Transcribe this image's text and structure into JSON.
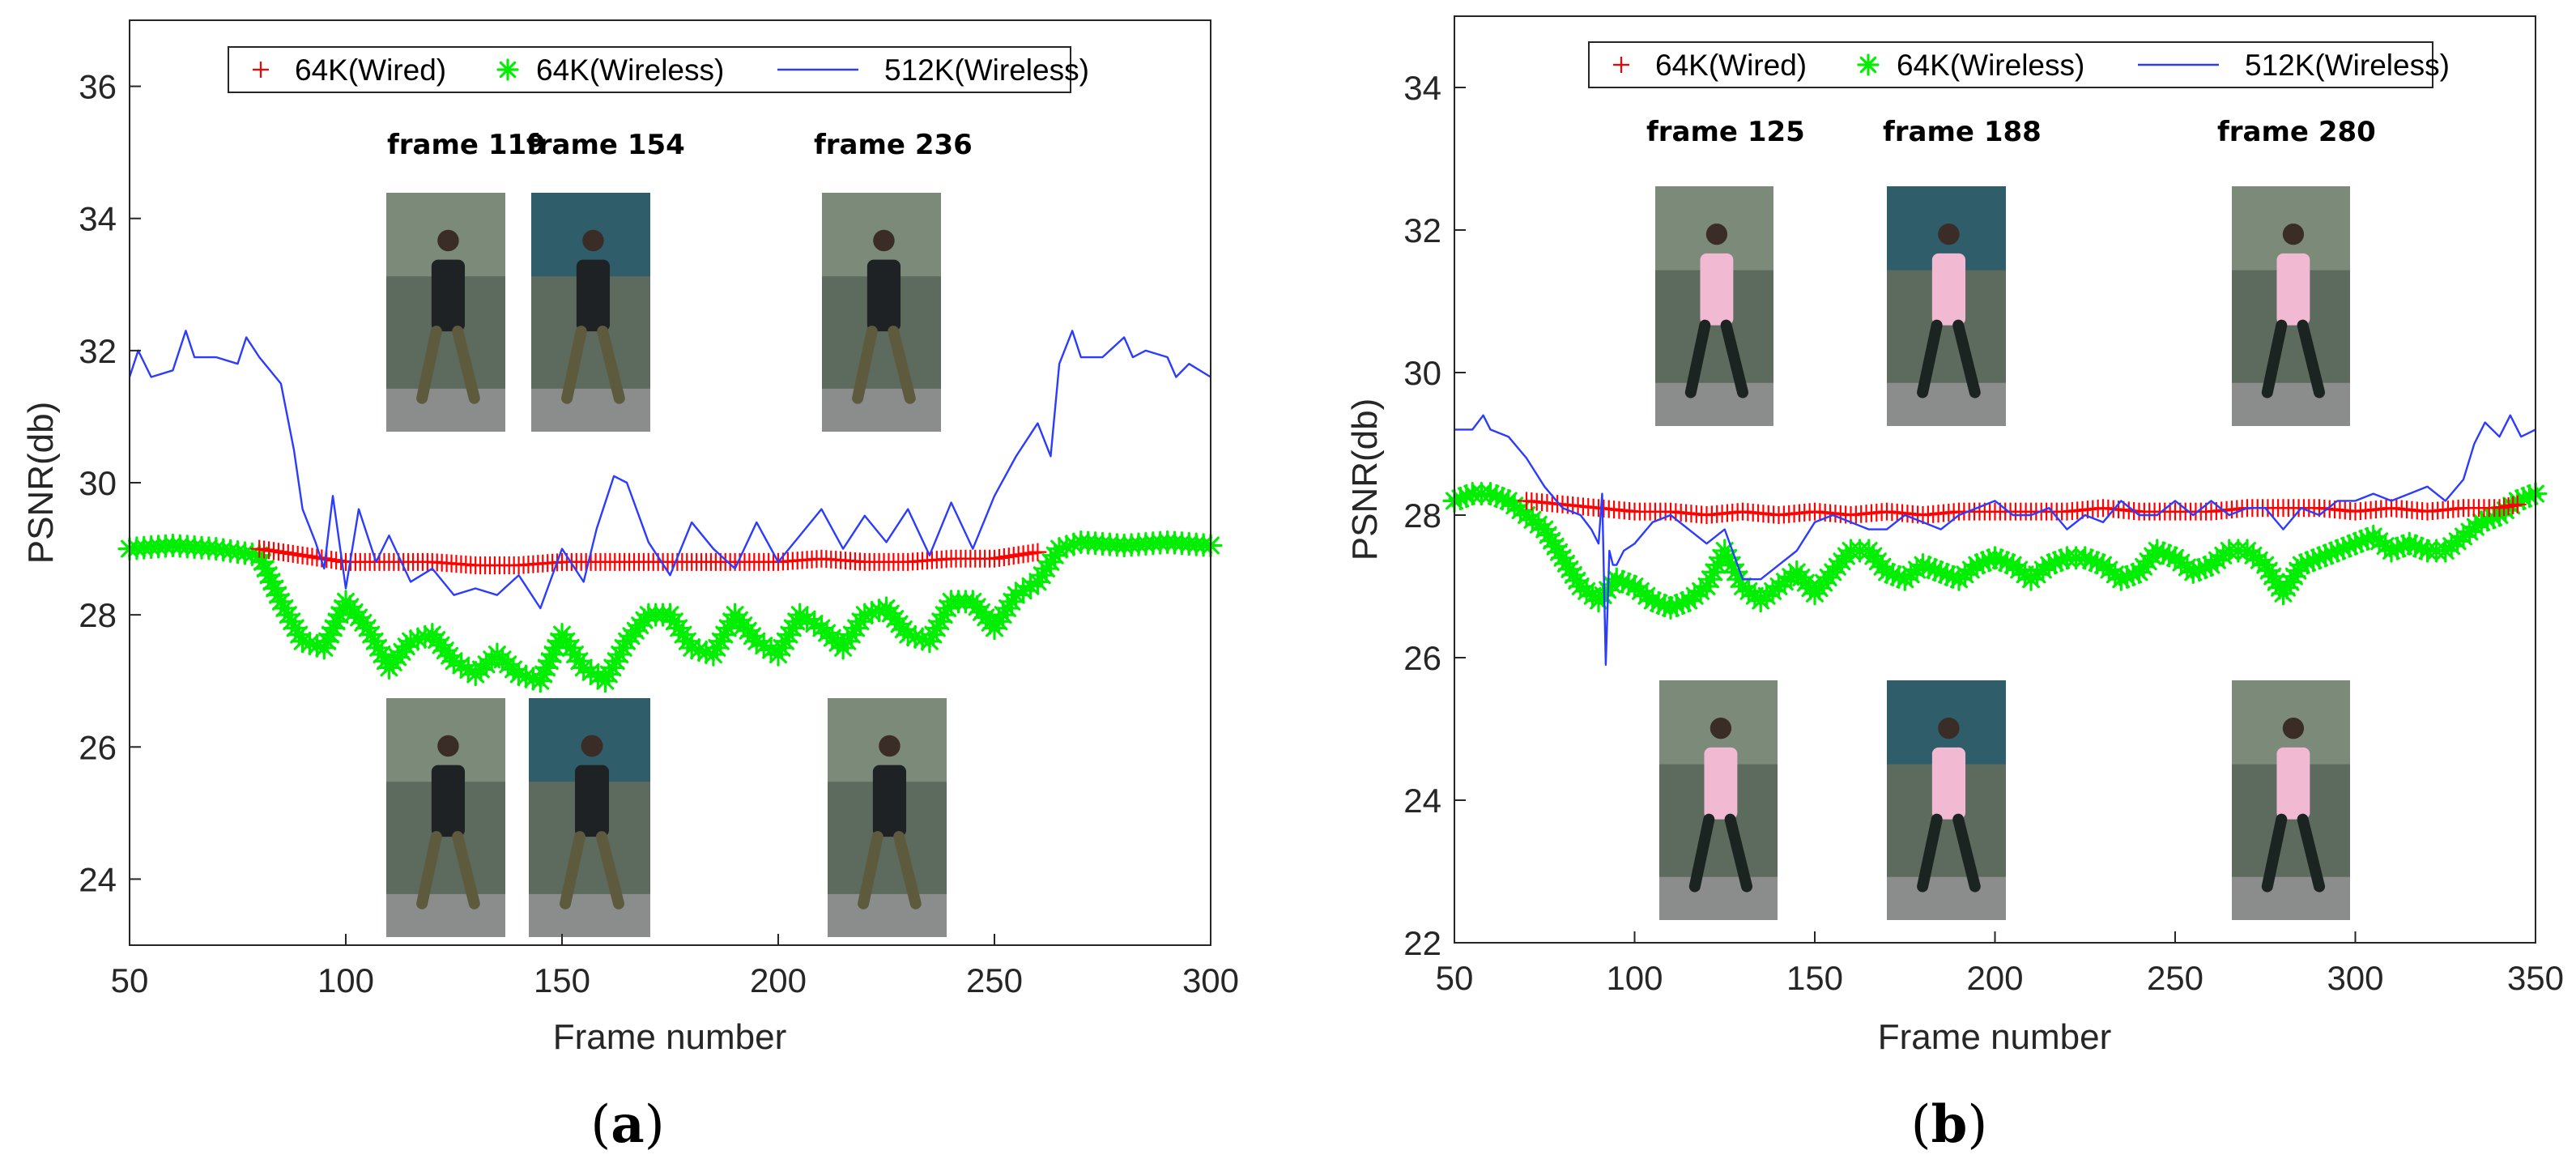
{
  "chart_data": [
    {
      "type": "line",
      "panel_label": "a",
      "xlabel": "Frame number",
      "ylabel": "PSNR(db)",
      "xlim": [
        50,
        300
      ],
      "ylim": [
        23,
        37
      ],
      "xticks": [
        50,
        100,
        150,
        200,
        250,
        300
      ],
      "yticks": [
        24,
        26,
        28,
        30,
        32,
        34,
        36
      ],
      "grid": false,
      "legend_position": "top-center",
      "frame_labels": [
        "frame 119",
        "frame 154",
        "frame 236"
      ],
      "series": [
        {
          "name": "64K(Wired)",
          "color": "#ff0000",
          "marker": "plus",
          "x": [
            80,
            90,
            100,
            110,
            120,
            130,
            140,
            150,
            160,
            170,
            180,
            190,
            200,
            210,
            220,
            230,
            240,
            250,
            260
          ],
          "y": [
            29.0,
            28.9,
            28.8,
            28.8,
            28.8,
            28.75,
            28.75,
            28.8,
            28.8,
            28.8,
            28.8,
            28.8,
            28.8,
            28.85,
            28.8,
            28.8,
            28.85,
            28.85,
            28.95
          ]
        },
        {
          "name": "64K(Wireless)",
          "color": "#00ee00",
          "marker": "star",
          "x": [
            50,
            60,
            70,
            80,
            85,
            90,
            95,
            100,
            105,
            110,
            115,
            120,
            125,
            130,
            135,
            140,
            145,
            150,
            155,
            160,
            165,
            170,
            175,
            180,
            185,
            190,
            195,
            200,
            205,
            210,
            215,
            220,
            225,
            230,
            235,
            240,
            245,
            250,
            255,
            260,
            265,
            270,
            280,
            290,
            300
          ],
          "y": [
            29.0,
            29.05,
            29.0,
            28.9,
            28.2,
            27.6,
            27.5,
            28.2,
            27.8,
            27.2,
            27.6,
            27.7,
            27.3,
            27.1,
            27.4,
            27.1,
            27.0,
            27.7,
            27.2,
            27.0,
            27.6,
            28.0,
            28.0,
            27.5,
            27.4,
            28.0,
            27.6,
            27.4,
            28.0,
            27.8,
            27.5,
            28.0,
            28.1,
            27.7,
            27.6,
            28.2,
            28.2,
            27.8,
            28.3,
            28.5,
            29.0,
            29.1,
            29.05,
            29.1,
            29.05
          ]
        },
        {
          "name": "512K(Wireless)",
          "color": "#2b3cff",
          "marker": "none",
          "x": [
            50,
            52,
            55,
            60,
            63,
            65,
            70,
            75,
            77,
            80,
            85,
            88,
            90,
            93,
            95,
            97,
            100,
            103,
            107,
            110,
            115,
            120,
            125,
            130,
            135,
            140,
            145,
            150,
            155,
            158,
            162,
            165,
            170,
            175,
            180,
            185,
            190,
            195,
            200,
            205,
            210,
            215,
            220,
            225,
            230,
            235,
            240,
            245,
            250,
            255,
            260,
            263,
            265,
            268,
            270,
            275,
            280,
            282,
            285,
            290,
            292,
            295,
            300
          ],
          "y": [
            31.6,
            32.0,
            31.6,
            31.7,
            32.3,
            31.9,
            31.9,
            31.8,
            32.2,
            31.9,
            31.5,
            30.5,
            29.6,
            29.1,
            28.7,
            29.8,
            28.4,
            29.6,
            28.8,
            29.2,
            28.5,
            28.7,
            28.3,
            28.4,
            28.3,
            28.6,
            28.1,
            29.0,
            28.5,
            29.3,
            30.1,
            30.0,
            29.1,
            28.6,
            29.4,
            29.0,
            28.7,
            29.4,
            28.8,
            29.2,
            29.6,
            29.0,
            29.5,
            29.1,
            29.6,
            28.9,
            29.7,
            29.0,
            29.8,
            30.4,
            30.9,
            30.4,
            31.8,
            32.3,
            31.9,
            31.9,
            32.2,
            31.9,
            32.0,
            31.9,
            31.6,
            31.8,
            31.6
          ]
        }
      ]
    },
    {
      "type": "line",
      "panel_label": "b",
      "xlabel": "Frame number",
      "ylabel": "PSNR(db)",
      "xlim": [
        50,
        350
      ],
      "ylim": [
        22,
        35
      ],
      "xticks": [
        50,
        100,
        150,
        200,
        250,
        300,
        350
      ],
      "yticks": [
        22,
        24,
        26,
        28,
        30,
        32,
        34
      ],
      "grid": false,
      "legend_position": "top-center",
      "frame_labels": [
        "frame 125",
        "frame 188",
        "frame 280"
      ],
      "series": [
        {
          "name": "64K(Wired)",
          "color": "#ff0000",
          "marker": "plus",
          "x": [
            70,
            80,
            90,
            100,
            110,
            120,
            130,
            140,
            150,
            160,
            170,
            180,
            190,
            200,
            210,
            220,
            230,
            240,
            250,
            260,
            270,
            280,
            290,
            300,
            310,
            320,
            330,
            340,
            345
          ],
          "y": [
            28.2,
            28.15,
            28.1,
            28.05,
            28.05,
            28.0,
            28.05,
            28.0,
            28.05,
            28.0,
            28.05,
            28.0,
            28.05,
            28.05,
            28.05,
            28.05,
            28.1,
            28.05,
            28.05,
            28.05,
            28.1,
            28.1,
            28.1,
            28.05,
            28.1,
            28.05,
            28.1,
            28.1,
            28.15
          ]
        },
        {
          "name": "64K(Wireless)",
          "color": "#00ee00",
          "marker": "star",
          "x": [
            50,
            55,
            60,
            65,
            70,
            75,
            80,
            85,
            90,
            95,
            100,
            105,
            110,
            115,
            120,
            125,
            130,
            135,
            140,
            145,
            150,
            155,
            160,
            165,
            170,
            175,
            180,
            185,
            190,
            195,
            200,
            205,
            210,
            215,
            220,
            225,
            230,
            235,
            240,
            245,
            250,
            255,
            260,
            265,
            270,
            275,
            280,
            285,
            290,
            295,
            300,
            305,
            310,
            315,
            320,
            325,
            330,
            335,
            340,
            345,
            350
          ],
          "y": [
            28.2,
            28.3,
            28.3,
            28.2,
            28.0,
            27.8,
            27.4,
            27.0,
            26.8,
            27.1,
            27.0,
            26.8,
            26.7,
            26.8,
            27.0,
            27.5,
            27.0,
            26.8,
            27.0,
            27.2,
            26.9,
            27.2,
            27.5,
            27.5,
            27.2,
            27.1,
            27.3,
            27.2,
            27.1,
            27.3,
            27.4,
            27.3,
            27.1,
            27.3,
            27.4,
            27.4,
            27.3,
            27.1,
            27.2,
            27.5,
            27.4,
            27.2,
            27.3,
            27.5,
            27.5,
            27.3,
            26.9,
            27.3,
            27.4,
            27.5,
            27.6,
            27.7,
            27.5,
            27.6,
            27.5,
            27.5,
            27.7,
            27.9,
            28.0,
            28.2,
            28.3
          ]
        },
        {
          "name": "512K(Wireless)",
          "color": "#2b3cff",
          "marker": "none",
          "x": [
            50,
            55,
            58,
            60,
            65,
            70,
            75,
            80,
            85,
            88,
            90,
            91,
            92,
            93,
            94,
            95,
            97,
            100,
            105,
            110,
            115,
            120,
            125,
            130,
            135,
            140,
            145,
            150,
            155,
            160,
            165,
            170,
            175,
            180,
            185,
            190,
            195,
            200,
            205,
            210,
            215,
            220,
            225,
            230,
            235,
            240,
            245,
            250,
            255,
            260,
            265,
            270,
            275,
            280,
            285,
            290,
            295,
            300,
            305,
            310,
            315,
            320,
            325,
            330,
            333,
            336,
            340,
            343,
            346,
            350
          ],
          "y": [
            29.2,
            29.2,
            29.4,
            29.2,
            29.1,
            28.8,
            28.4,
            28.1,
            28.0,
            27.8,
            27.6,
            28.3,
            25.9,
            27.5,
            27.3,
            27.3,
            27.5,
            27.6,
            27.9,
            28.0,
            27.8,
            27.6,
            27.8,
            27.1,
            27.1,
            27.3,
            27.5,
            27.9,
            28.0,
            27.9,
            27.8,
            27.8,
            28.0,
            27.9,
            27.8,
            28.0,
            28.1,
            28.2,
            28.0,
            28.0,
            28.1,
            27.8,
            28.0,
            27.9,
            28.2,
            28.0,
            28.0,
            28.2,
            28.0,
            28.2,
            28.0,
            28.1,
            28.1,
            27.8,
            28.1,
            28.0,
            28.2,
            28.2,
            28.3,
            28.2,
            28.3,
            28.4,
            28.2,
            28.5,
            29.0,
            29.3,
            29.1,
            29.4,
            29.1,
            29.2
          ]
        }
      ]
    }
  ]
}
